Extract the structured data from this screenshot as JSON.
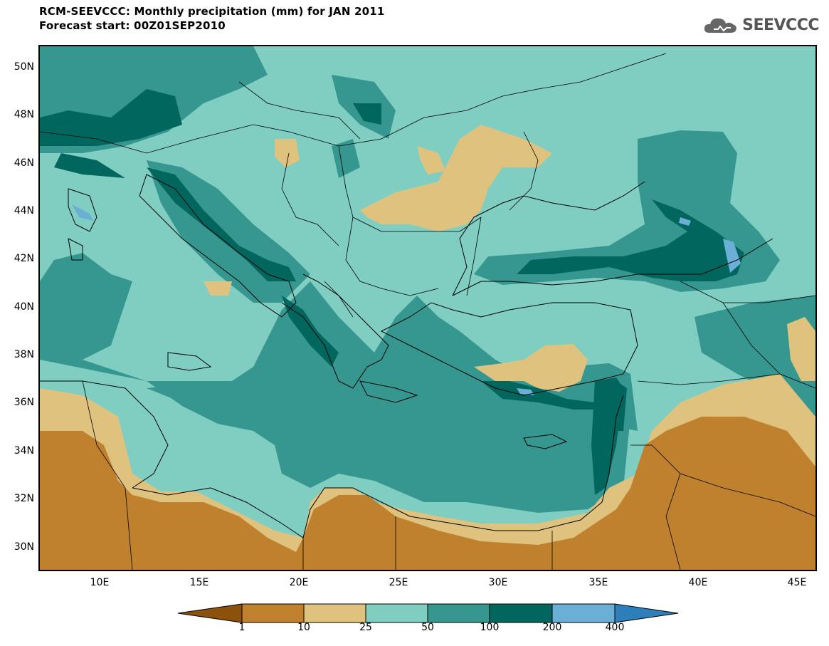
{
  "header": {
    "title": "RCM-SEEVCCC: Monthly precipitation (mm) for JAN 2011",
    "subtitle": "Forecast start: 00Z01SEP2010"
  },
  "logo": {
    "text": "SEEVCCC",
    "icon": "cloud-logo-icon"
  },
  "map": {
    "lat_labels": [
      "50N",
      "48N",
      "46N",
      "44N",
      "42N",
      "40N",
      "38N",
      "36N",
      "34N",
      "32N",
      "30N"
    ],
    "lon_labels": [
      "10E",
      "15E",
      "20E",
      "25E",
      "30E",
      "35E",
      "40E",
      "45E"
    ],
    "colors": {
      "lt1": "#8c510a",
      "1_10": "#bf812d",
      "10_25": "#dfc27d",
      "25_50": "#80cdc1",
      "50_100": "#35978f",
      "100_200": "#01665e",
      "200_400": "#6baed6",
      "gt400": "#2c7fb8"
    }
  },
  "colorbar": {
    "labels": [
      "1",
      "10",
      "25",
      "50",
      "100",
      "200",
      "400"
    ],
    "colors": [
      "#8c510a",
      "#bf812d",
      "#dfc27d",
      "#80cdc1",
      "#35978f",
      "#01665e",
      "#6baed6",
      "#2c7fb8"
    ]
  }
}
